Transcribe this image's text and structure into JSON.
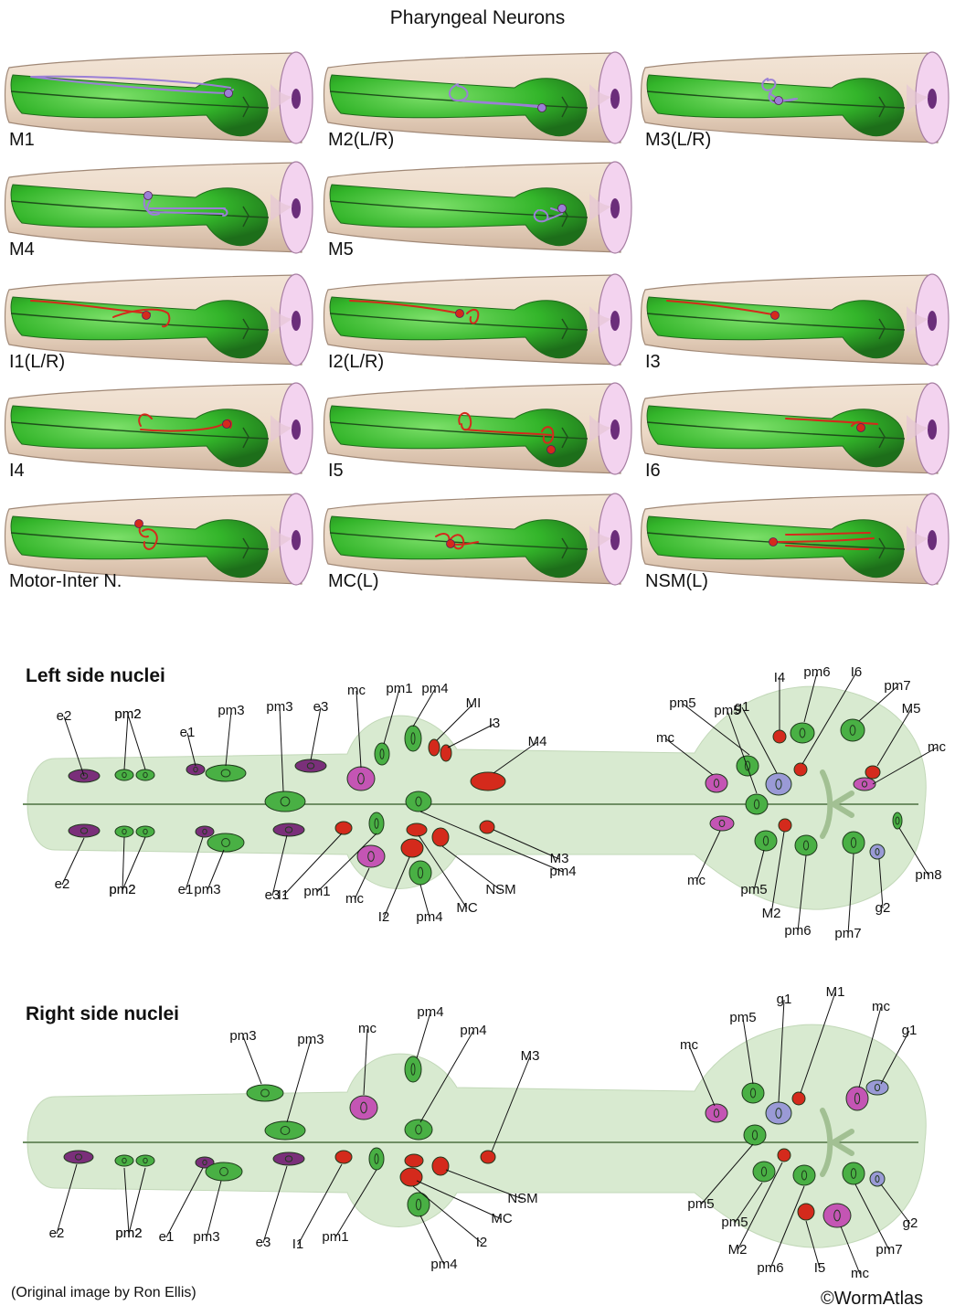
{
  "title": "Pharyngeal Neurons",
  "colors": {
    "pharynx_green": "#33b52a",
    "pharynx_dark": "#1d6e1a",
    "body_tan": "#ecd9c6",
    "mouth_pink": "#f3d3ef",
    "neuron_purple": "#9b7fd6",
    "neuron_red": "#d42a1c",
    "muscle_green": "#49b044",
    "epithelial_purple": "#7a2f7a",
    "marginal_magenta": "#c455b4",
    "gland_lavender": "#9a9ad6",
    "nuclei_body": "#d8ead0"
  },
  "panels": [
    {
      "label": "M1",
      "color": "#9b7fd6",
      "neuron": "m1"
    },
    {
      "label": "M2(L/R)",
      "color": "#9b7fd6",
      "neuron": "m2"
    },
    {
      "label": "M3(L/R)",
      "color": "#9b7fd6",
      "neuron": "m3"
    },
    {
      "label": "M4",
      "color": "#9b7fd6",
      "neuron": "m4"
    },
    {
      "label": "M5",
      "color": "#9b7fd6",
      "neuron": "m5"
    },
    {
      "label": "I1(L/R)",
      "color": "#d42a1c",
      "neuron": "i1"
    },
    {
      "label": "I2(L/R)",
      "color": "#d42a1c",
      "neuron": "i2"
    },
    {
      "label": "I3",
      "color": "#d42a1c",
      "neuron": "i3"
    },
    {
      "label": "I4",
      "color": "#d42a1c",
      "neuron": "i4"
    },
    {
      "label": "I5",
      "color": "#d42a1c",
      "neuron": "i5"
    },
    {
      "label": "I6",
      "color": "#d42a1c",
      "neuron": "i6"
    },
    {
      "label": "Motor-Inter N.",
      "color": "#d42a1c",
      "neuron": "mi"
    },
    {
      "label": "MC(L)",
      "color": "#d42a1c",
      "neuron": "mc"
    },
    {
      "label": "NSM(L)",
      "color": "#d42a1c",
      "neuron": "nsm"
    }
  ],
  "left_side": {
    "title": "Left side nuclei",
    "labels": [
      "e2",
      "pm2",
      "e1",
      "pm3",
      "pm3",
      "e3",
      "mc",
      "pm1",
      "pm4",
      "MI",
      "I3",
      "M4",
      "e2",
      "pm2",
      "e1",
      "pm3",
      "e3",
      "I1",
      "pm1",
      "mc",
      "I2",
      "pm4",
      "MC",
      "NSM",
      "pm4",
      "M3",
      "pm5",
      "g1",
      "I4",
      "pm6",
      "I6",
      "pm7",
      "M5",
      "mc",
      "pm5",
      "mc",
      "mc",
      "pm5",
      "M2",
      "pm6",
      "pm7",
      "g2",
      "pm8"
    ]
  },
  "right_side": {
    "title": "Right side nuclei",
    "labels": [
      "pm3",
      "pm3",
      "mc",
      "pm4",
      "pm4",
      "M3",
      "e2",
      "pm2",
      "e1",
      "pm3",
      "e3",
      "I1",
      "pm1",
      "NSM",
      "MC",
      "I2",
      "pm4",
      "mc",
      "pm5",
      "g1",
      "M1",
      "mc",
      "g1",
      "pm5",
      "pm5",
      "M2",
      "pm6",
      "I5",
      "mc",
      "pm7",
      "g2"
    ]
  },
  "credits": {
    "source": "(Original image by Ron Ellis)",
    "copyright": "©WormAtlas"
  }
}
